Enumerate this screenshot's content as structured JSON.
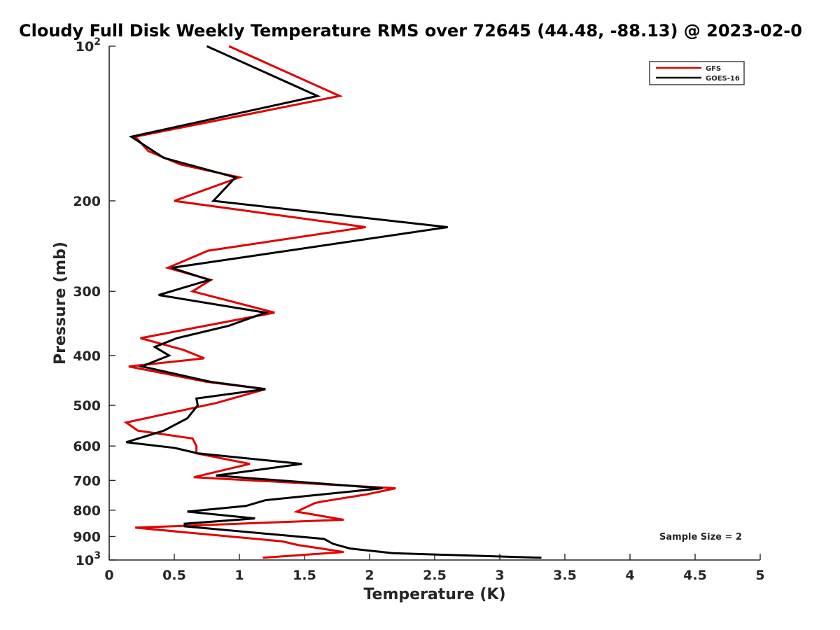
{
  "chart_data": {
    "type": "line",
    "title": "Cloudy Full Disk Weekly Temperature RMS over 72645 (44.48, -88.13) @ 2023-02-0",
    "xlabel": "Temperature (K)",
    "ylabel": "Pressure (mb)",
    "xlim": [
      0,
      5
    ],
    "ylim": [
      100,
      1000
    ],
    "y_scale": "log",
    "y_reversed": true,
    "grid": false,
    "legend_position": "top-right",
    "x_ticks": [
      "0",
      "0.5",
      "1",
      "1.5",
      "2",
      "2.5",
      "3",
      "3.5",
      "4",
      "4.5",
      "5"
    ],
    "y_ticks": [
      {
        "value": 100,
        "base": "10",
        "exp": "2"
      },
      {
        "value": 200,
        "label": "200"
      },
      {
        "value": 300,
        "label": "300"
      },
      {
        "value": 400,
        "label": "400"
      },
      {
        "value": 500,
        "label": "500"
      },
      {
        "value": 600,
        "label": "600"
      },
      {
        "value": 700,
        "label": "700"
      },
      {
        "value": 800,
        "label": "800"
      },
      {
        "value": 900,
        "label": "900"
      },
      {
        "value": 1000,
        "base": "10",
        "exp": "3"
      }
    ],
    "series": [
      {
        "name": "GFS",
        "color": "#e00000",
        "points": [
          [
            0.92,
            100
          ],
          [
            1.77,
            125
          ],
          [
            0.2,
            150
          ],
          [
            0.3,
            160
          ],
          [
            0.55,
            170
          ],
          [
            1.0,
            180
          ],
          [
            0.5,
            200
          ],
          [
            1.97,
            225
          ],
          [
            0.76,
            250
          ],
          [
            0.45,
            270
          ],
          [
            0.78,
            285
          ],
          [
            0.64,
            300
          ],
          [
            1.27,
            330
          ],
          [
            0.24,
            370
          ],
          [
            0.57,
            390
          ],
          [
            0.73,
            405
          ],
          [
            0.15,
            420
          ],
          [
            0.75,
            450
          ],
          [
            1.2,
            465
          ],
          [
            0.82,
            495
          ],
          [
            0.13,
            540
          ],
          [
            0.22,
            560
          ],
          [
            0.64,
            580
          ],
          [
            0.67,
            600
          ],
          [
            0.67,
            620
          ],
          [
            1.08,
            650
          ],
          [
            0.65,
            690
          ],
          [
            2.2,
            725
          ],
          [
            1.98,
            745
          ],
          [
            1.63,
            770
          ],
          [
            1.58,
            775
          ],
          [
            1.44,
            805
          ],
          [
            1.8,
            835
          ],
          [
            0.2,
            865
          ],
          [
            1.33,
            920
          ],
          [
            1.45,
            935
          ],
          [
            1.63,
            950
          ],
          [
            1.8,
            965
          ],
          [
            1.18,
            990
          ]
        ]
      },
      {
        "name": "GOES-16",
        "color": "#000000",
        "points": [
          [
            0.75,
            100
          ],
          [
            1.6,
            125
          ],
          [
            0.17,
            150
          ],
          [
            0.42,
            165
          ],
          [
            0.97,
            180
          ],
          [
            0.8,
            200
          ],
          [
            2.6,
            225
          ],
          [
            0.48,
            270
          ],
          [
            0.77,
            285
          ],
          [
            0.38,
            305
          ],
          [
            1.2,
            330
          ],
          [
            0.92,
            350
          ],
          [
            0.52,
            370
          ],
          [
            0.35,
            385
          ],
          [
            0.46,
            400
          ],
          [
            0.25,
            420
          ],
          [
            0.78,
            450
          ],
          [
            1.2,
            465
          ],
          [
            0.67,
            485
          ],
          [
            0.68,
            500
          ],
          [
            0.6,
            530
          ],
          [
            0.42,
            560
          ],
          [
            0.13,
            590
          ],
          [
            0.5,
            605
          ],
          [
            0.68,
            620
          ],
          [
            1.48,
            650
          ],
          [
            0.82,
            685
          ],
          [
            2.1,
            725
          ],
          [
            1.2,
            765
          ],
          [
            1.05,
            785
          ],
          [
            0.6,
            805
          ],
          [
            1.12,
            830
          ],
          [
            0.58,
            850
          ],
          [
            0.58,
            860
          ],
          [
            1.65,
            910
          ],
          [
            1.72,
            930
          ],
          [
            1.85,
            950
          ],
          [
            2.18,
            970
          ],
          [
            3.32,
            990
          ]
        ]
      }
    ],
    "annotation": "Sample Size = 2"
  }
}
